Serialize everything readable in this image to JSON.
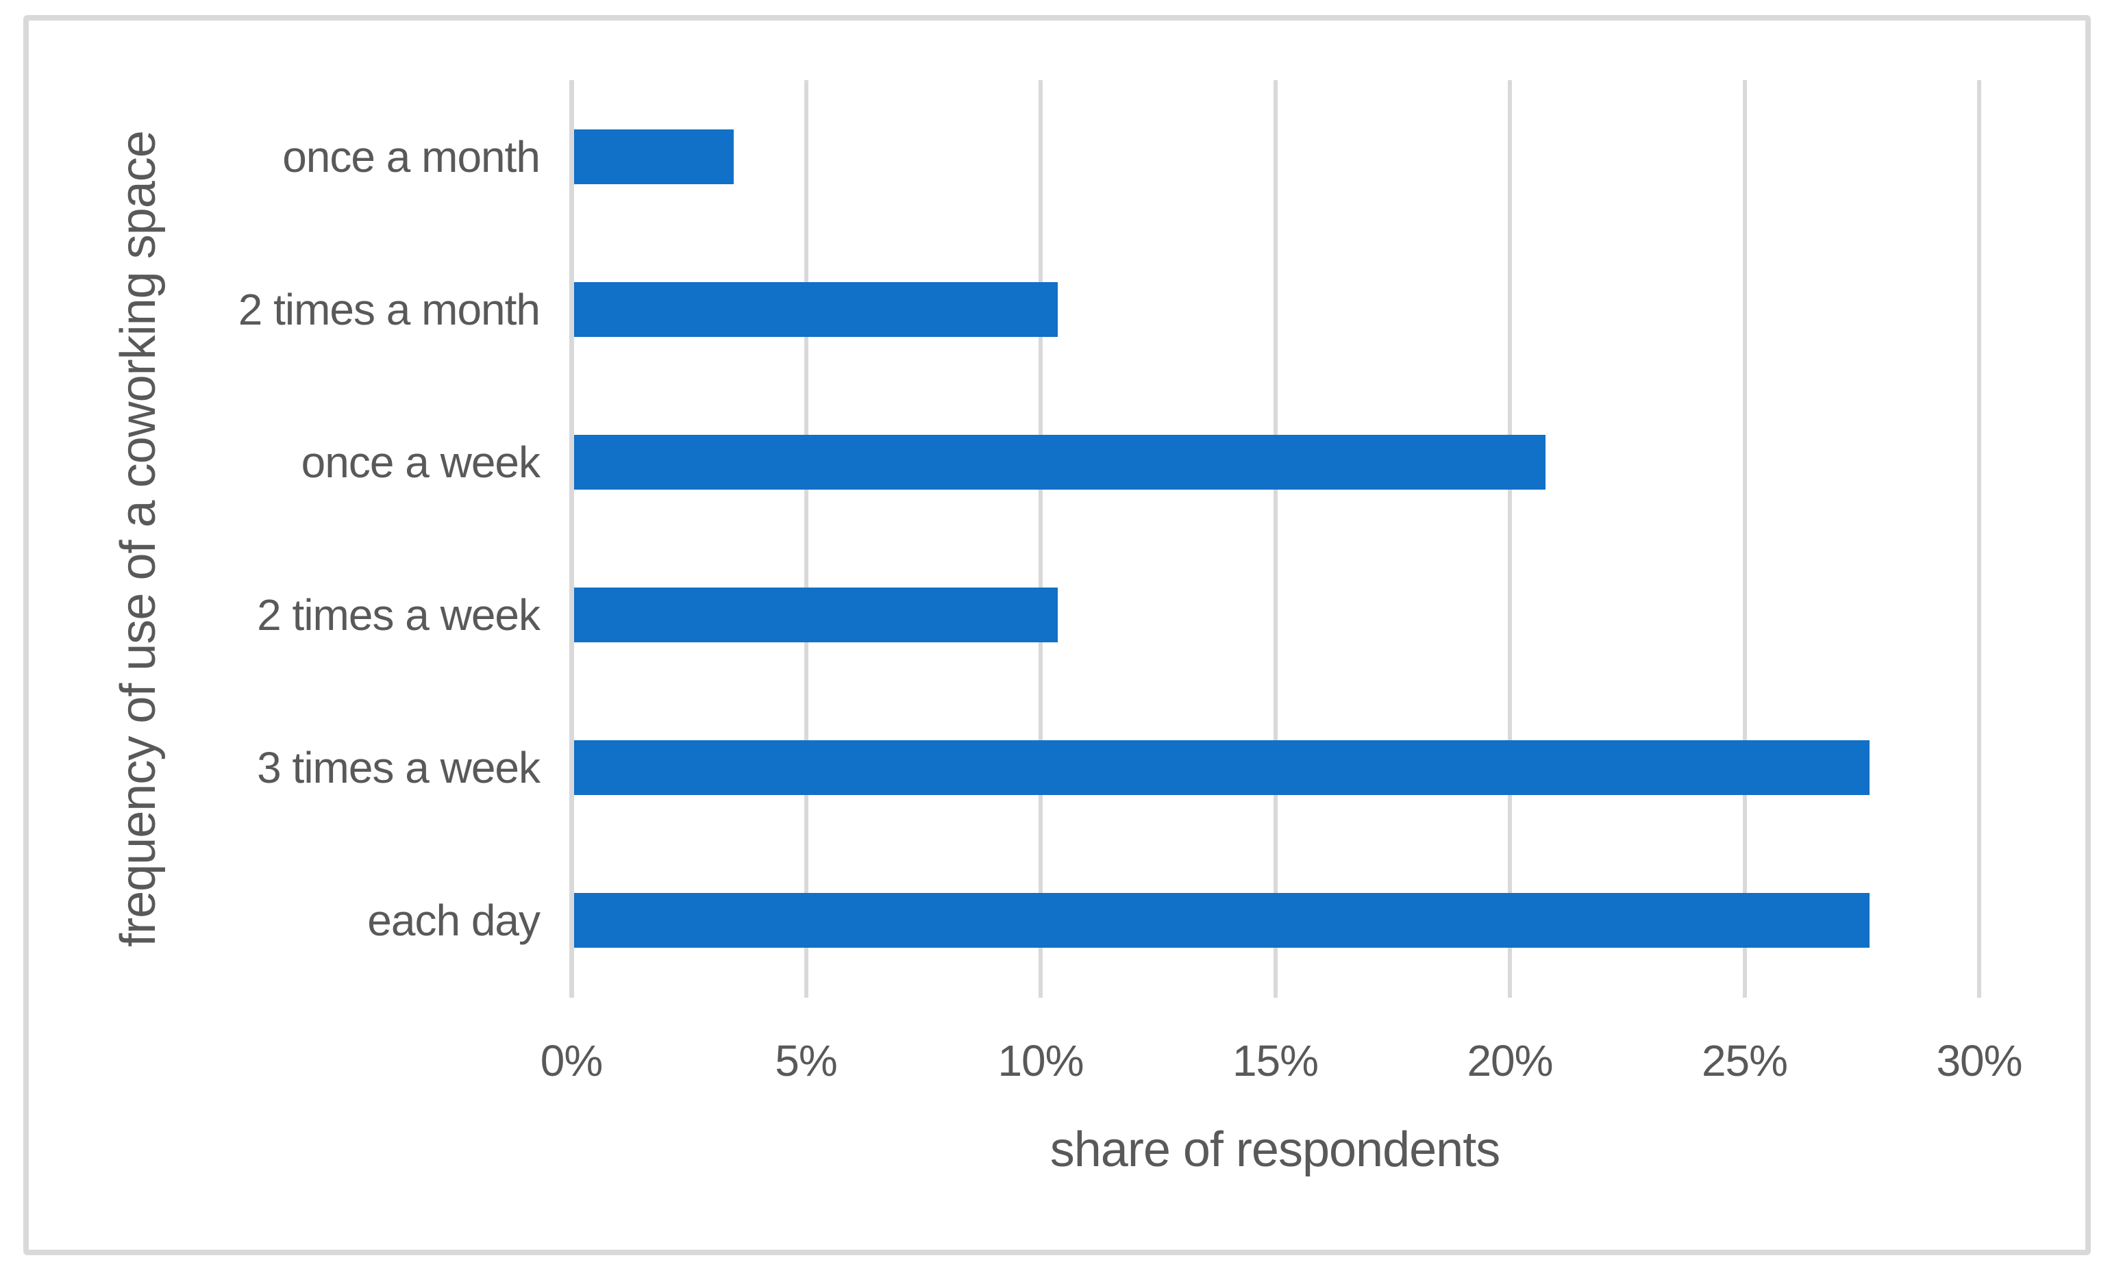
{
  "figure": {
    "background": "#ffffff",
    "border_color": "#d9d9d9"
  },
  "chart_data": {
    "type": "bar",
    "orientation": "horizontal",
    "title": "",
    "xlabel": "share of respondents",
    "ylabel": "frequency of use of a coworking space",
    "categories": [
      "once a month",
      "2 times a month",
      "once a week",
      "2 times a week",
      "3 times a week",
      "each day"
    ],
    "values": [
      3.4,
      10.3,
      20.7,
      10.3,
      27.6,
      27.6
    ],
    "value_unit": "%",
    "xlim": [
      0,
      30
    ],
    "xticks": [
      0,
      5,
      10,
      15,
      20,
      25,
      30
    ],
    "xtick_labels": [
      "0%",
      "5%",
      "10%",
      "15%",
      "20%",
      "25%",
      "30%"
    ],
    "grid": true,
    "legend": "none",
    "colors": {
      "bar": "#1170c7",
      "gridline": "#d9d9d9",
      "axis_line": "#d9d9d9",
      "text": "#595959"
    }
  }
}
